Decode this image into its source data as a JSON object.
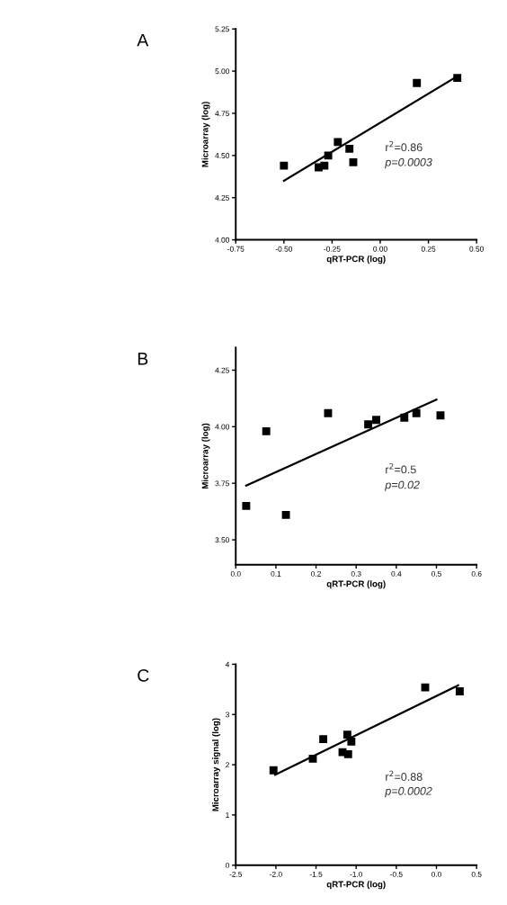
{
  "chart_data": [
    {
      "type": "scatter",
      "title": "A",
      "xlabel": "qRT-PCR (log)",
      "ylabel": "Microarray (log)",
      "grid": false,
      "xlim": [
        -0.75,
        0.5
      ],
      "ylim": [
        4.0,
        5.25
      ],
      "xticks": [
        {
          "value": -0.75,
          "label": "-0.75"
        },
        {
          "value": -0.5,
          "label": "-0.50"
        },
        {
          "value": -0.25,
          "label": "-0.25"
        },
        {
          "value": 0,
          "label": "0.00"
        },
        {
          "value": 0.25,
          "label": "0.25"
        },
        {
          "value": 0.5,
          "label": "0.50"
        }
      ],
      "yticks": [
        {
          "value": 4.0,
          "label": "4.00"
        },
        4.25,
        {
          "value": 4.5,
          "label": "4.50"
        },
        4.75,
        {
          "value": 5.0,
          "label": "5.00"
        },
        5.25
      ],
      "series": [
        {
          "marker": "square",
          "color": "#000000",
          "x": [
            -0.5,
            -0.32,
            -0.29,
            -0.27,
            -0.22,
            -0.16,
            -0.14,
            0.19,
            0.4
          ],
          "values": [
            4.44,
            4.43,
            4.44,
            4.5,
            4.58,
            4.54,
            4.46,
            4.93,
            4.96
          ]
        },
        {
          "type": "line",
          "color": "#000000",
          "x": [
            -0.5,
            0.4
          ],
          "values": [
            4.35,
            4.97
          ]
        }
      ],
      "annotations": [
        "r$^{2}$=0.86",
        "p=0.0003"
      ]
    },
    {
      "type": "scatter",
      "title": "B",
      "xlabel": "qRT-PCR (log)",
      "ylabel": "Microarray (log)",
      "grid": false,
      "xlim": [
        0,
        0.6
      ],
      "ylim": [
        3.39,
        4.35
      ],
      "xticks": [
        {
          "value": 0,
          "label": "0.0"
        },
        0.1,
        0.2,
        0.3,
        0.4,
        0.5,
        0.6
      ],
      "yticks": [
        {
          "value": 3.5,
          "label": "3.50"
        },
        3.75,
        {
          "value": 4.0,
          "label": "4.00"
        },
        4.25
      ],
      "series": [
        {
          "marker": "square",
          "color": "#000000",
          "x": [
            0.026,
            0.076,
            0.125,
            0.23,
            0.33,
            0.35,
            0.42,
            0.45,
            0.51
          ],
          "values": [
            3.65,
            3.98,
            3.61,
            4.06,
            4.01,
            4.03,
            4.04,
            4.06,
            4.05
          ]
        },
        {
          "type": "line",
          "color": "#000000",
          "x": [
            0.026,
            0.5
          ],
          "values": [
            3.74,
            4.12
          ]
        }
      ],
      "annotations": [
        "r$^{2}$=0.5",
        "p=0.02"
      ]
    },
    {
      "type": "scatter",
      "title": "C",
      "xlabel": "qRT-PCR (log)",
      "ylabel": "Microarray signal (log)",
      "grid": false,
      "xlim": [
        -2.5,
        0.5
      ],
      "ylim": [
        0,
        4
      ],
      "xticks": [
        {
          "value": -2.5,
          "label": "-2.5"
        },
        {
          "value": -2.0,
          "label": "-2.0"
        },
        {
          "value": -1.5,
          "label": "-1.5"
        },
        {
          "value": -1.0,
          "label": "-1.0"
        },
        {
          "value": -0.5,
          "label": "-0.5"
        },
        {
          "value": 0,
          "label": "0.0"
        },
        0.5
      ],
      "yticks": [
        0,
        1,
        2,
        3,
        4
      ],
      "series": [
        {
          "marker": "square",
          "color": "#000000",
          "x": [
            -2.03,
            -1.54,
            -1.41,
            -1.17,
            -1.11,
            -1.1,
            -1.06,
            -0.14,
            0.29
          ],
          "values": [
            1.89,
            2.12,
            2.51,
            2.25,
            2.6,
            2.21,
            2.46,
            3.54,
            3.46
          ]
        },
        {
          "type": "line",
          "color": "#000000",
          "x": [
            -2.01,
            0.27
          ],
          "values": [
            1.8,
            3.58
          ]
        }
      ],
      "annotations": [
        "r$^{2}$=0.88",
        "p=0.0002"
      ]
    }
  ]
}
